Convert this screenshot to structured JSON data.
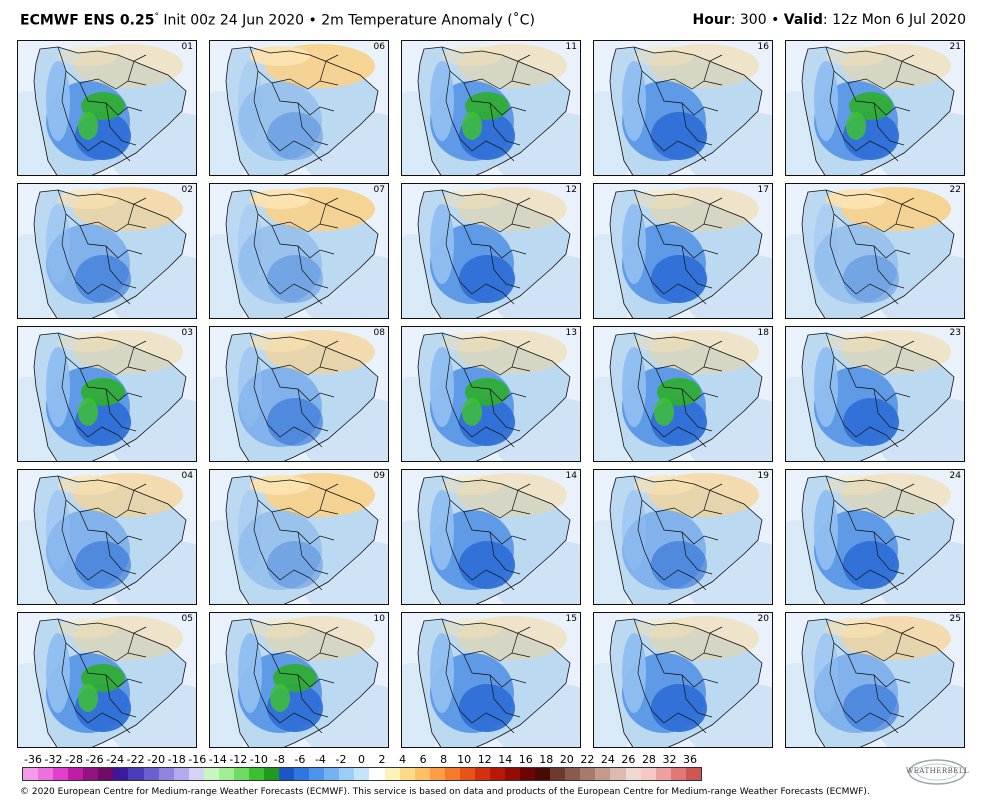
{
  "header": {
    "model": "ECMWF ENS 0.25",
    "degree": "°",
    "init": "Init 00z 24 Jun 2020",
    "bullet": "•",
    "field": "2m Temperature Anomaly (˚C)",
    "hour_label": "Hour",
    "hour_value": ": 300",
    "valid_label": "Valid",
    "valid_value": ": 12z Mon 6 Jul 2020"
  },
  "panels": [
    {
      "member": "01",
      "pattern": "cold-green"
    },
    {
      "member": "06",
      "pattern": "warm"
    },
    {
      "member": "11",
      "pattern": "cold-green"
    },
    {
      "member": "16",
      "pattern": "cold"
    },
    {
      "member": "21",
      "pattern": "cold-green"
    },
    {
      "member": "02",
      "pattern": "mixed"
    },
    {
      "member": "07",
      "pattern": "warm"
    },
    {
      "member": "12",
      "pattern": "cold"
    },
    {
      "member": "17",
      "pattern": "cold"
    },
    {
      "member": "22",
      "pattern": "warm"
    },
    {
      "member": "03",
      "pattern": "cold-green"
    },
    {
      "member": "08",
      "pattern": "mixed"
    },
    {
      "member": "13",
      "pattern": "cold-green"
    },
    {
      "member": "18",
      "pattern": "cold-green"
    },
    {
      "member": "23",
      "pattern": "cold"
    },
    {
      "member": "04",
      "pattern": "mixed"
    },
    {
      "member": "09",
      "pattern": "warm"
    },
    {
      "member": "14",
      "pattern": "cold"
    },
    {
      "member": "19",
      "pattern": "mixed"
    },
    {
      "member": "24",
      "pattern": "cold"
    },
    {
      "member": "05",
      "pattern": "cold-green"
    },
    {
      "member": "10",
      "pattern": "cold-green"
    },
    {
      "member": "15",
      "pattern": "cold"
    },
    {
      "member": "20",
      "pattern": "cold"
    },
    {
      "member": "25",
      "pattern": "mixed"
    }
  ],
  "colorbar": {
    "labels": [
      "-36",
      "-32",
      "-28",
      "-26",
      "-24",
      "-22",
      "-20",
      "-18",
      "-16",
      "-14",
      "-12",
      "-10",
      "-8",
      "-6",
      "-4",
      "-2",
      "0",
      "2",
      "4",
      "6",
      "8",
      "10",
      "12",
      "14",
      "16",
      "18",
      "20",
      "22",
      "24",
      "26",
      "28",
      "32",
      "36"
    ],
    "colors": [
      "#f59ae8",
      "#ee6fdd",
      "#e040cc",
      "#c21ba8",
      "#931282",
      "#700a66",
      "#3a1a9a",
      "#4a3cb8",
      "#6a5ed0",
      "#8d85e0",
      "#b2aaee",
      "#d6d2f6",
      "#c8f5c0",
      "#9fee93",
      "#6fdb62",
      "#3dbf32",
      "#1f9a1c",
      "#1a56c8",
      "#2f77e0",
      "#4d95ec",
      "#74b2f2",
      "#9ccdf6",
      "#c4e4fa",
      "#ffffff",
      "#fff2b8",
      "#ffd98a",
      "#ffbf66",
      "#ff9d44",
      "#f57a2a",
      "#e85418",
      "#d4300e",
      "#b81808",
      "#960b04",
      "#6e0402",
      "#4a0a04",
      "#6e3a2c",
      "#8c5a4a",
      "#a87a6a",
      "#c49a8c",
      "#dcbab0",
      "#f0d8d2",
      "#f5c8c8",
      "#eea0a0",
      "#e07878",
      "#d05656"
    ]
  },
  "footer": "© 2020 European Centre for Medium-range Weather Forecasts (ECMWF). This service is based on data and products of the European Centre for Medium-range Weather Forecasts (ECMWF).",
  "logo": "WEATHERBELL"
}
